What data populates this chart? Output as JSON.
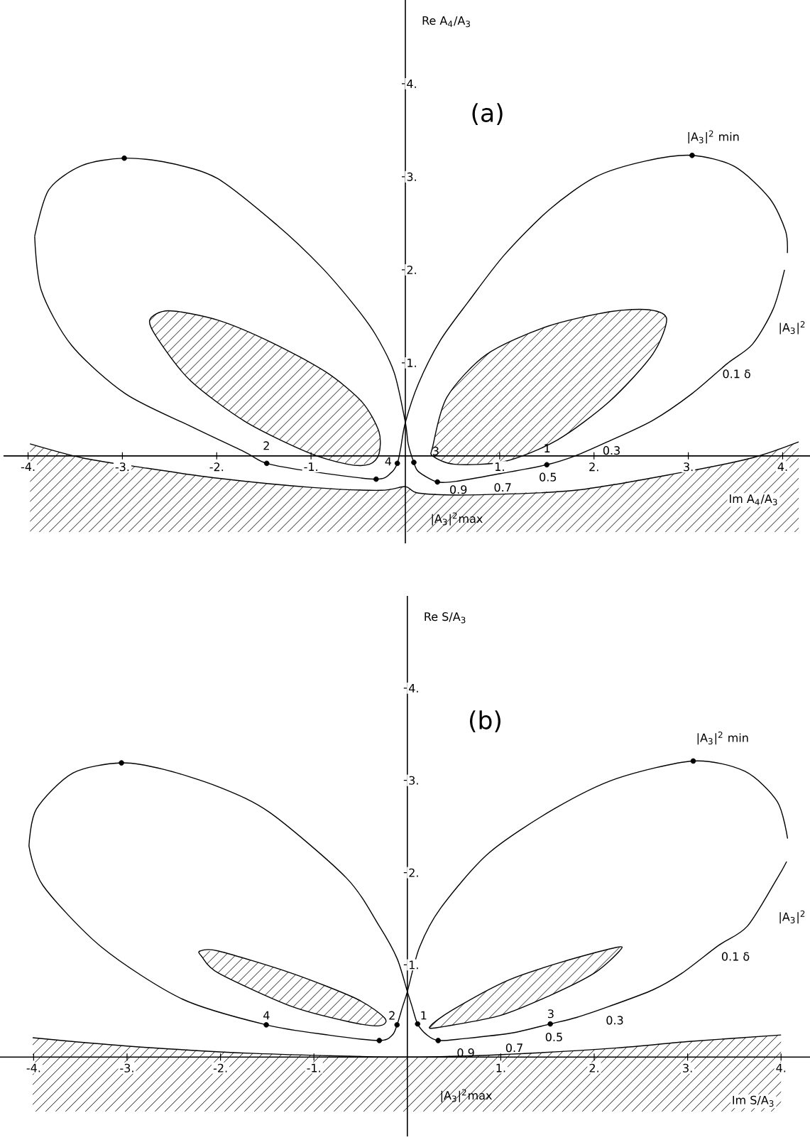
{
  "chart_data": [
    {
      "type": "line",
      "xlabel": "Im A$_{4}$/A$_{3}$",
      "ylabel": "Re A$_{4}$/A$_{3}$",
      "xlim": [
        -4.26,
        4.29
      ],
      "ylim": [
        -0.94,
        4.9
      ],
      "xticks": [
        {
          "value": -4,
          "label": "-4."
        },
        {
          "value": -3,
          "label": "-3."
        },
        {
          "value": -2,
          "label": "-2."
        },
        {
          "value": -1,
          "label": "-1."
        },
        {
          "value": 1,
          "label": "1."
        },
        {
          "value": 2,
          "label": "2."
        },
        {
          "value": 3,
          "label": "3."
        },
        {
          "value": 4,
          "label": "4."
        }
      ],
      "yticks": [
        {
          "value": 1,
          "label": "1."
        },
        {
          "value": 2,
          "label": "2."
        },
        {
          "value": 3,
          "label": "3."
        },
        {
          "value": 4,
          "label": "4."
        }
      ],
      "series": [
        {
          "color": "#000000",
          "x": [
            -3.98,
            -3.43,
            -2.82,
            -1.99,
            -0.98,
            -0.26,
            0,
            0.14,
            0.67,
            1.8,
            2.92,
            3.68,
            4.17
          ],
          "values": [
            0.13,
            -0.02,
            -0.12,
            -0.24,
            -0.34,
            -0.37,
            -0.33,
            -0.4,
            -0.42,
            -0.37,
            -0.18,
            -0.02,
            0.15
          ]
        },
        {
          "color": "#000000",
          "x": [
            -3.93,
            -3.86,
            -3.54,
            -2.97,
            -2.28,
            -1.7,
            -1.47,
            -0.98,
            -0.31,
            -0.15,
            -0.085,
            -0.05,
            0,
            0.14,
            0.37,
            0.67,
            1.05,
            1.53,
            2.02,
            2.55,
            3.04,
            3.49,
            3.86,
            4.03,
            4.05
          ],
          "values": [
            2.36,
            1.78,
            1.19,
            0.67,
            0.32,
            0.04,
            -0.08,
            -0.17,
            -0.25,
            -0.18,
            -0.08,
            0.08,
            0.36,
            0.78,
            1.24,
            1.66,
            2.16,
            2.65,
            3.0,
            3.17,
            3.23,
            3.11,
            2.77,
            2.42,
            2.18
          ]
        },
        {
          "color": "#000000",
          "x": [
            4.02,
            3.9,
            3.68,
            3.41,
            3.04,
            2.62,
            2.14,
            1.8,
            1.5,
            1.01,
            0.56,
            0.34,
            0.14,
            0.09,
            0.03,
            0,
            -0.12,
            -0.32,
            -0.55,
            -0.9,
            -1.36,
            -1.99,
            -2.51,
            -2.98,
            -3.43,
            -3.78,
            -3.93
          ],
          "values": [
            2.0,
            1.58,
            1.2,
            0.99,
            0.67,
            0.38,
            0.15,
            0.0,
            -0.095,
            -0.19,
            -0.27,
            -0.28,
            -0.17,
            -0.07,
            0.13,
            0.36,
            0.9,
            1.31,
            1.63,
            2.04,
            2.48,
            2.98,
            3.15,
            3.2,
            3.12,
            2.86,
            2.36
          ]
        },
        {
          "type": "scatter",
          "marker": "circle",
          "color": "#000000",
          "x": [
            1.5,
            0.09,
            -1.47,
            -0.085
          ],
          "values": [
            -0.095,
            -0.07,
            -0.08,
            -0.08
          ]
        },
        {
          "type": "scatter",
          "marker": "circle",
          "color": "#000000",
          "x": [
            3.04,
            0.34,
            -2.98,
            -0.31
          ],
          "values": [
            3.23,
            -0.28,
            3.2,
            -0.25
          ]
        }
      ],
      "annotations": [
        "(a)",
        "|A$_{3}$|$^{2}$ min",
        "|A$_{3}$|$^{2}$",
        "0.1 δ",
        "0.3",
        "1",
        "0.5",
        "0.7",
        "0.9",
        "3",
        "2",
        "4",
        "|A$_{3}$|$^{2}$max"
      ]
    },
    {
      "type": "line",
      "xlabel": "Im S/A$_{3}$",
      "ylabel": "Re S/A$_{3}$",
      "xlim": [
        -4.36,
        4.31
      ],
      "ylim": [
        -0.86,
        5.0
      ],
      "xticks": [
        {
          "value": -4,
          "label": "-4."
        },
        {
          "value": -3,
          "label": "-3."
        },
        {
          "value": -2,
          "label": "-2."
        },
        {
          "value": -1,
          "label": "-1."
        },
        {
          "value": 1,
          "label": "1."
        },
        {
          "value": 2,
          "label": "2."
        },
        {
          "value": 3,
          "label": "3."
        },
        {
          "value": 4,
          "label": "4."
        }
      ],
      "yticks": [
        {
          "value": 1,
          "label": "1."
        },
        {
          "value": 2,
          "label": "2."
        },
        {
          "value": 3,
          "label": "3."
        },
        {
          "value": 4,
          "label": "4."
        }
      ],
      "series": [
        {
          "color": "#000000",
          "x": [
            -4.01,
            -3.0,
            -1.63,
            0,
            1.07,
            2.24,
            3.02,
            4.0
          ],
          "values": [
            0.21,
            0.12,
            0.04,
            0.0,
            0.03,
            0.1,
            0.17,
            0.24
          ]
        },
        {
          "color": "#000000",
          "x": [
            -4.05,
            -3.9,
            -3.27,
            -2.41,
            -1.51,
            -0.85,
            -0.3,
            -0.16,
            -0.11,
            -0.05,
            0,
            0.13,
            0.36,
            0.87,
            1.57,
            2.24,
            3.06,
            3.61,
            3.96,
            4.07
          ],
          "values": [
            2.29,
            1.86,
            1.19,
            0.63,
            0.35,
            0.24,
            0.18,
            0.24,
            0.35,
            0.55,
            0.71,
            1.19,
            1.62,
            2.21,
            2.69,
            3.02,
            3.21,
            3.1,
            2.77,
            2.37
          ]
        },
        {
          "color": "#000000",
          "x": [
            4.06,
            3.96,
            3.64,
            3.33,
            2.94,
            2.63,
            2.16,
            1.81,
            1.53,
            1.11,
            0.6,
            0.33,
            0.21,
            0.11,
            0.05,
            0,
            -0.11,
            -0.3,
            -0.65,
            -1.47,
            -2.02,
            -2.61,
            -3.06,
            -3.58,
            -3.97,
            -4.05
          ],
          "values": [
            2.12,
            1.94,
            1.42,
            1.21,
            0.91,
            0.73,
            0.55,
            0.43,
            0.36,
            0.26,
            0.2,
            0.18,
            0.24,
            0.36,
            0.55,
            0.71,
            1.07,
            1.42,
            1.94,
            2.65,
            2.93,
            3.12,
            3.19,
            3.08,
            2.69,
            2.29
          ]
        },
        {
          "type": "scatter",
          "marker": "circle",
          "color": "#000000",
          "x": [
            1.53,
            0.11,
            -1.51,
            -0.11
          ],
          "values": [
            0.36,
            0.36,
            0.35,
            0.35
          ]
        },
        {
          "type": "scatter",
          "marker": "circle",
          "color": "#000000",
          "x": [
            3.06,
            0.33,
            -3.06,
            -0.3
          ],
          "values": [
            3.21,
            0.18,
            3.19,
            0.18
          ]
        }
      ],
      "annotations": [
        "(b)",
        "|A$_{3}$|$^{2}$ min",
        "|A$_{3}$|$^{2}$",
        "0.1 δ",
        "0.3",
        "3",
        "0.5",
        "0.7",
        "0.9",
        "1",
        "4",
        "2",
        {
          "text": "|A$_{3}$|$^{2}$max",
          "x": 0.33,
          "y": 0.01
        }
      ]
    }
  ]
}
